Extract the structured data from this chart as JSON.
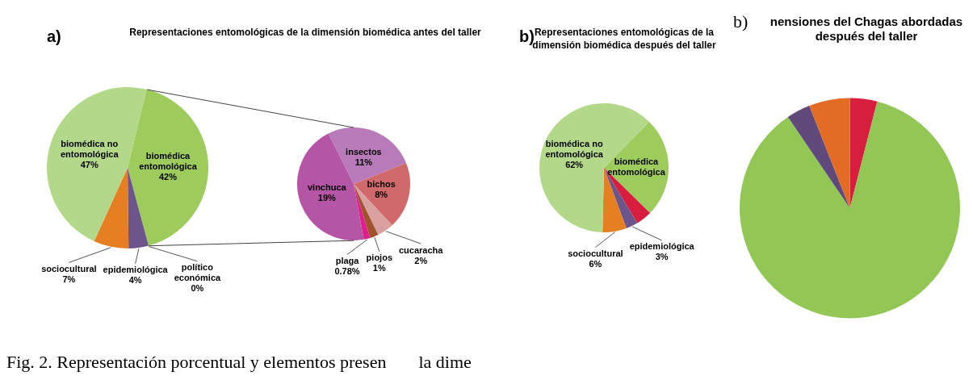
{
  "chart_data": [
    {
      "type": "pie",
      "title": "Representaciones entomológicas de la dimensión biomédica antes del taller",
      "annotations": [
        "a)",
        "Fig. 2. Representación porcentual y elementos presen",
        "la dime"
      ],
      "categories": [
        "biomédica entomológica",
        "político económica",
        "epidemiológica",
        "sociocultural",
        "biomédica no entomológica"
      ],
      "values": [
        42,
        0,
        4,
        7,
        47
      ],
      "value_labels": [
        "42%",
        "0%",
        "4%",
        "7%",
        "47%"
      ],
      "colors": [
        "#9dcb5c",
        "#c0504d",
        "#6b558a",
        "#e67e22",
        "#b3d88a"
      ]
    },
    {
      "type": "pie",
      "categories": [
        "insectos",
        "bichos",
        "cucaracha",
        "piojos",
        "plaga",
        "vinchuca"
      ],
      "values": [
        11,
        8,
        2,
        1,
        0.78,
        19
      ],
      "value_labels": [
        "11%",
        "8%",
        "2%",
        "1%",
        "0.78%",
        "19%"
      ],
      "colors": [
        "#b87ab8",
        "#d06a6a",
        "#d9a0a0",
        "#a0522d",
        "#e0208a",
        "#b455a5"
      ]
    },
    {
      "type": "pie",
      "title": "Representaciones entomológicas de la dimensión biomédica después del taller",
      "annotations": [
        "b)"
      ],
      "categories": [
        "biomédica entomológica",
        null,
        "epidemiológica",
        "sociocultural",
        "biomédica no entomológica"
      ],
      "values": [
        25,
        4,
        3,
        6,
        62
      ],
      "value_labels": [
        null,
        null,
        "3%",
        "6%",
        "62%"
      ],
      "colors": [
        "#9dcb5c",
        "#d81e3f",
        "#6b558a",
        "#e67e22",
        "#b3d88a"
      ]
    },
    {
      "type": "pie",
      "title": "nensiones del Chagas abordadas después del taller",
      "annotations": [
        "b)"
      ],
      "categories": [
        null,
        null,
        null,
        null
      ],
      "values": [
        4,
        86.5,
        3.5,
        6
      ],
      "colors": [
        "#d81e3f",
        "#92c755",
        "#604a7b",
        "#e36c25"
      ]
    }
  ]
}
